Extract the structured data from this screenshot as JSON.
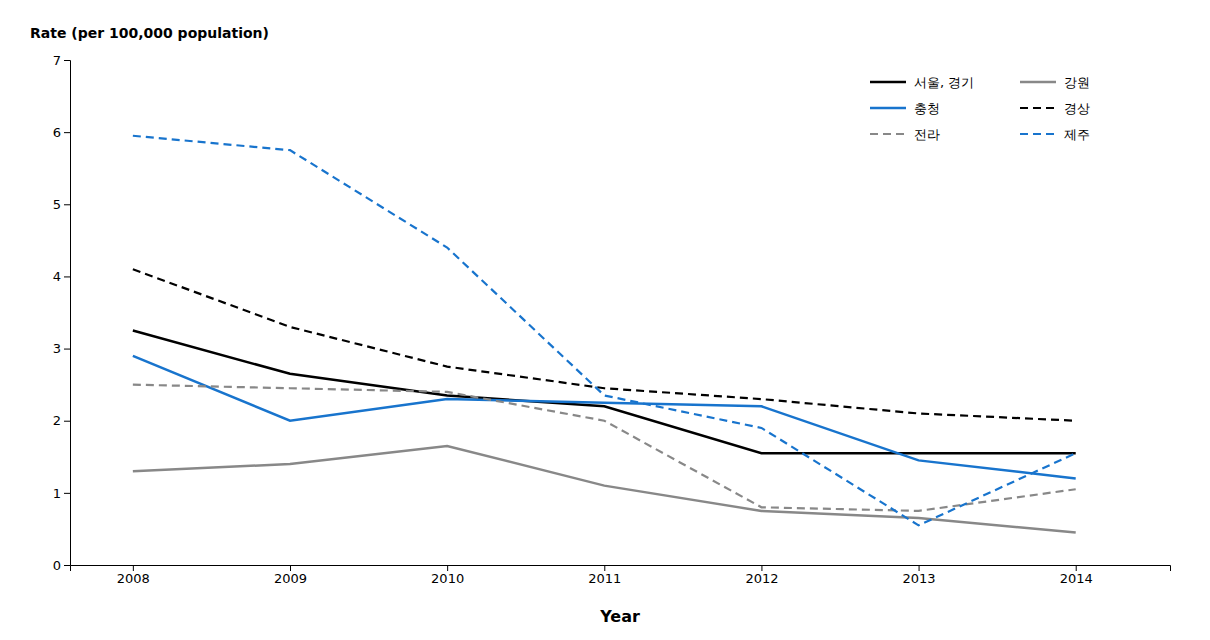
{
  "chart_data": {
    "type": "line",
    "xlabel": "Year",
    "ylabel": "Rate (per 100,000 population)",
    "x": [
      2008,
      2009,
      2010,
      2011,
      2012,
      2013,
      2014
    ],
    "series": [
      {
        "name": "서울, 경기",
        "color": "#000000",
        "line_style": "solid",
        "values": [
          3.25,
          2.65,
          2.35,
          2.2,
          1.55,
          1.55,
          1.55
        ]
      },
      {
        "name": "강원",
        "color": "#888888",
        "line_style": "solid",
        "values": [
          1.3,
          1.4,
          1.65,
          1.1,
          0.75,
          0.65,
          0.45
        ]
      },
      {
        "name": "충청",
        "color": "#1874CD",
        "line_style": "solid",
        "values": [
          2.9,
          2.0,
          2.3,
          2.25,
          2.2,
          1.45,
          1.2
        ]
      },
      {
        "name": "경상",
        "color": "#000000",
        "line_style": "dashed",
        "values": [
          4.1,
          3.3,
          2.75,
          2.45,
          2.3,
          2.1,
          2.0
        ]
      },
      {
        "name": "전라",
        "color": "#888888",
        "line_style": "dashed",
        "values": [
          2.5,
          2.45,
          2.4,
          2.0,
          0.8,
          0.75,
          1.05
        ]
      },
      {
        "name": "제주",
        "color": "#1874CD",
        "line_style": "dashed",
        "values": [
          5.95,
          5.75,
          4.4,
          2.35,
          1.9,
          0.55,
          1.55
        ]
      }
    ],
    "xlim": [
      2007.6,
      2014.6
    ],
    "xticks": [
      2008,
      2009,
      2010,
      2011,
      2012,
      2013,
      2014
    ],
    "ylim": [
      0,
      7
    ],
    "yticks": [
      0,
      1,
      2,
      3,
      4,
      5,
      6,
      7
    ],
    "grid": false,
    "legend": "upper right"
  }
}
